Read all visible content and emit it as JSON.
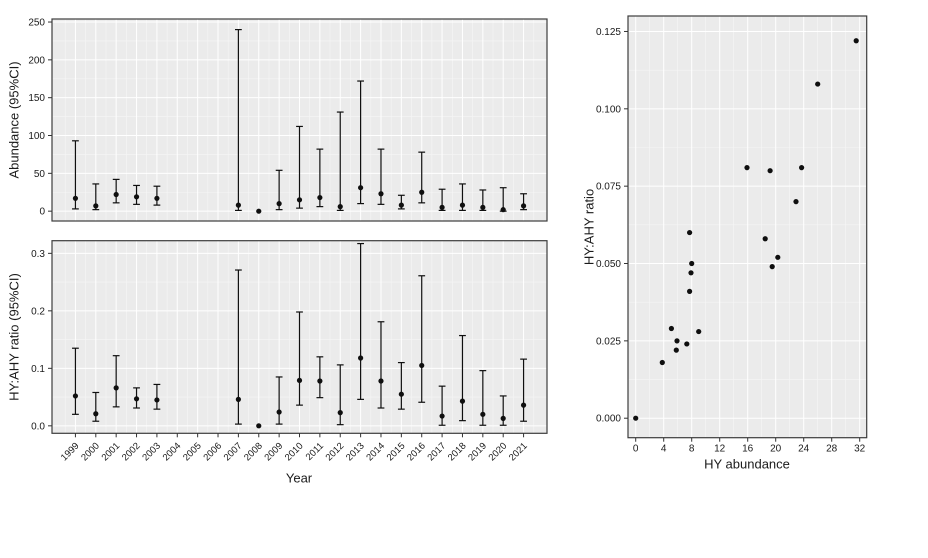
{
  "figure": {
    "description": "Three-panel statistical figure: abundance and HY:AHY ratio estimates with 95% confidence intervals by year, and HY:AHY ratio versus HY abundance scatter plot"
  },
  "colors": {
    "background": "#ffffff",
    "panel_background": "#ebebeb",
    "grid_major": "#ffffff",
    "grid_minor": "#f6f6f6",
    "panel_border": "#3c3c3c",
    "tick_mark": "#333333",
    "text": "#1a1a1a",
    "point": "#0f0f0f"
  },
  "chart_data": [
    {
      "id": "abundance_by_year",
      "type": "pointrange",
      "title": "",
      "xlabel": "",
      "ylabel": "Abundance (95%CI)",
      "x_is_shared_with_panel_below": true,
      "xlim": [
        1997.85,
        2022.15
      ],
      "ylim": [
        -13,
        254
      ],
      "yticks": [
        0,
        50,
        100,
        150,
        200,
        250
      ],
      "ytick_labels": [
        "0",
        "50",
        "100",
        "150",
        "200",
        "250"
      ],
      "grid": "major-and-minor",
      "series": [
        {
          "year": 1999,
          "estimate": 17,
          "lower": 3,
          "upper": 93
        },
        {
          "year": 2000,
          "estimate": 7,
          "lower": 2,
          "upper": 36
        },
        {
          "year": 2001,
          "estimate": 22,
          "lower": 11,
          "upper": 42
        },
        {
          "year": 2002,
          "estimate": 19,
          "lower": 9,
          "upper": 34
        },
        {
          "year": 2003,
          "estimate": 17,
          "lower": 8,
          "upper": 33
        },
        {
          "year": 2004,
          "estimate": null,
          "lower": null,
          "upper": null
        },
        {
          "year": 2005,
          "estimate": null,
          "lower": null,
          "upper": null
        },
        {
          "year": 2006,
          "estimate": null,
          "lower": null,
          "upper": null
        },
        {
          "year": 2007,
          "estimate": 8,
          "lower": 1,
          "upper": 240
        },
        {
          "year": 2008,
          "estimate": 0,
          "lower": null,
          "upper": null
        },
        {
          "year": 2009,
          "estimate": 10,
          "lower": 2,
          "upper": 54
        },
        {
          "year": 2010,
          "estimate": 15,
          "lower": 4,
          "upper": 112
        },
        {
          "year": 2011,
          "estimate": 18,
          "lower": 6,
          "upper": 82
        },
        {
          "year": 2012,
          "estimate": 6,
          "lower": 1,
          "upper": 131
        },
        {
          "year": 2013,
          "estimate": 31,
          "lower": 10,
          "upper": 172
        },
        {
          "year": 2014,
          "estimate": 23,
          "lower": 9,
          "upper": 82
        },
        {
          "year": 2015,
          "estimate": 8,
          "lower": 3,
          "upper": 21
        },
        {
          "year": 2016,
          "estimate": 25,
          "lower": 11,
          "upper": 78
        },
        {
          "year": 2017,
          "estimate": 5,
          "lower": 1,
          "upper": 29
        },
        {
          "year": 2018,
          "estimate": 8,
          "lower": 1,
          "upper": 36
        },
        {
          "year": 2019,
          "estimate": 5,
          "lower": 1,
          "upper": 28
        },
        {
          "year": 2020,
          "estimate": 2,
          "lower": 0,
          "upper": 31
        },
        {
          "year": 2021,
          "estimate": 7,
          "lower": 2,
          "upper": 23
        }
      ]
    },
    {
      "id": "ratio_by_year",
      "type": "pointrange",
      "title": "",
      "xlabel": "Year",
      "ylabel": "HY:AHY ratio (95%CI)",
      "xlim": [
        1997.85,
        2022.15
      ],
      "ylim": [
        -0.013,
        0.322
      ],
      "yticks": [
        0.0,
        0.1,
        0.2,
        0.3
      ],
      "ytick_labels": [
        "0.0",
        "0.1",
        "0.2",
        "0.3"
      ],
      "xtick_labels": [
        "1999",
        "2000",
        "2001",
        "2002",
        "2003",
        "2004",
        "2005",
        "2006",
        "2007",
        "2008",
        "2009",
        "2010",
        "2011",
        "2012",
        "2013",
        "2014",
        "2015",
        "2016",
        "2017",
        "2018",
        "2019",
        "2020",
        "2021"
      ],
      "xtick_label_angle_deg": 45,
      "grid": "major-and-minor",
      "series": [
        {
          "year": 1999,
          "estimate": 0.052,
          "lower": 0.02,
          "upper": 0.135
        },
        {
          "year": 2000,
          "estimate": 0.021,
          "lower": 0.008,
          "upper": 0.058
        },
        {
          "year": 2001,
          "estimate": 0.066,
          "lower": 0.033,
          "upper": 0.122
        },
        {
          "year": 2002,
          "estimate": 0.047,
          "lower": 0.031,
          "upper": 0.066
        },
        {
          "year": 2003,
          "estimate": 0.045,
          "lower": 0.029,
          "upper": 0.072
        },
        {
          "year": 2004,
          "estimate": null,
          "lower": null,
          "upper": null
        },
        {
          "year": 2005,
          "estimate": null,
          "lower": null,
          "upper": null
        },
        {
          "year": 2006,
          "estimate": null,
          "lower": null,
          "upper": null
        },
        {
          "year": 2007,
          "estimate": 0.046,
          "lower": 0.003,
          "upper": 0.271
        },
        {
          "year": 2008,
          "estimate": 0.0,
          "lower": null,
          "upper": null
        },
        {
          "year": 2009,
          "estimate": 0.024,
          "lower": 0.003,
          "upper": 0.085
        },
        {
          "year": 2010,
          "estimate": 0.079,
          "lower": 0.036,
          "upper": 0.198
        },
        {
          "year": 2011,
          "estimate": 0.078,
          "lower": 0.049,
          "upper": 0.12
        },
        {
          "year": 2012,
          "estimate": 0.023,
          "lower": 0.002,
          "upper": 0.106
        },
        {
          "year": 2013,
          "estimate": 0.118,
          "lower": 0.046,
          "upper": 0.317
        },
        {
          "year": 2014,
          "estimate": 0.078,
          "lower": 0.031,
          "upper": 0.181
        },
        {
          "year": 2015,
          "estimate": 0.055,
          "lower": 0.029,
          "upper": 0.11
        },
        {
          "year": 2016,
          "estimate": 0.105,
          "lower": 0.041,
          "upper": 0.261
        },
        {
          "year": 2017,
          "estimate": 0.017,
          "lower": 0.001,
          "upper": 0.069
        },
        {
          "year": 2018,
          "estimate": 0.043,
          "lower": 0.009,
          "upper": 0.157
        },
        {
          "year": 2019,
          "estimate": 0.02,
          "lower": 0.001,
          "upper": 0.096
        },
        {
          "year": 2020,
          "estimate": 0.013,
          "lower": 0.001,
          "upper": 0.052
        },
        {
          "year": 2021,
          "estimate": 0.036,
          "lower": 0.008,
          "upper": 0.116
        }
      ]
    },
    {
      "id": "ratio_vs_abundance",
      "type": "scatter",
      "title": "",
      "xlabel": "HY abundance",
      "ylabel": "HY:AHY ratio",
      "xlim": [
        -1.1,
        33.0
      ],
      "ylim": [
        -0.0063,
        0.13
      ],
      "xticks": [
        0,
        4,
        8,
        12,
        16,
        20,
        24,
        28,
        32
      ],
      "xtick_labels": [
        "0",
        "4",
        "8",
        "12",
        "16",
        "20",
        "24",
        "28",
        "32"
      ],
      "yticks": [
        0.0,
        0.025,
        0.05,
        0.075,
        0.1,
        0.125
      ],
      "ytick_labels": [
        "0.000",
        "0.025",
        "0.050",
        "0.075",
        "0.100",
        "0.125"
      ],
      "grid": "major-and-minor",
      "points": [
        {
          "x": 0.0,
          "y": 0.0
        },
        {
          "x": 3.8,
          "y": 0.018
        },
        {
          "x": 5.1,
          "y": 0.029
        },
        {
          "x": 5.8,
          "y": 0.022
        },
        {
          "x": 5.9,
          "y": 0.025
        },
        {
          "x": 7.3,
          "y": 0.024
        },
        {
          "x": 9.0,
          "y": 0.028
        },
        {
          "x": 7.7,
          "y": 0.041
        },
        {
          "x": 7.9,
          "y": 0.047
        },
        {
          "x": 8.0,
          "y": 0.05
        },
        {
          "x": 7.7,
          "y": 0.06
        },
        {
          "x": 18.5,
          "y": 0.058
        },
        {
          "x": 19.5,
          "y": 0.049
        },
        {
          "x": 20.3,
          "y": 0.052
        },
        {
          "x": 15.9,
          "y": 0.081
        },
        {
          "x": 19.2,
          "y": 0.08
        },
        {
          "x": 23.7,
          "y": 0.081
        },
        {
          "x": 22.9,
          "y": 0.07
        },
        {
          "x": 26.0,
          "y": 0.108
        },
        {
          "x": 31.5,
          "y": 0.122
        }
      ]
    }
  ]
}
